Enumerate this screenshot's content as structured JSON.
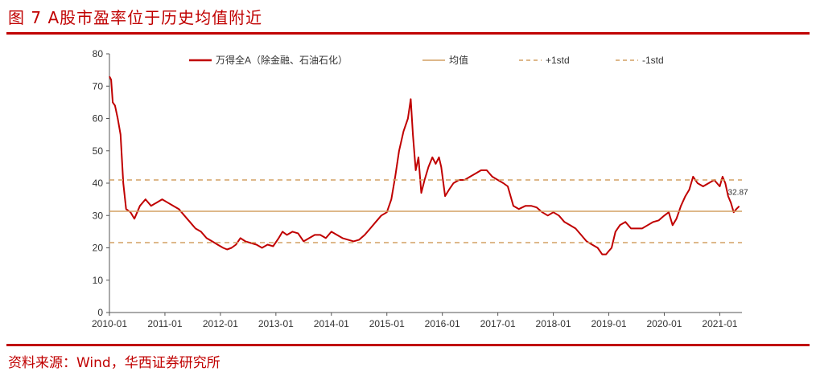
{
  "header": {
    "title": "图 7 A股市盈率位于历史均值附近"
  },
  "footer": {
    "source": "资料来源：Wind，华西证券研究所"
  },
  "colors": {
    "accent": "#c00000",
    "series": "#c00000",
    "mean": "#d4a064",
    "std": "#d4a064"
  },
  "chart_data": {
    "type": "line",
    "title": "",
    "xlabel": "",
    "ylabel": "",
    "xlim": [
      2010.0,
      2021.4
    ],
    "ylim": [
      0,
      80
    ],
    "yticks": [
      0,
      10,
      20,
      30,
      40,
      50,
      60,
      70,
      80
    ],
    "xticks": [
      {
        "x": 2010.0,
        "label": "2010-01"
      },
      {
        "x": 2011.0,
        "label": "2011-01"
      },
      {
        "x": 2012.0,
        "label": "2012-01"
      },
      {
        "x": 2013.0,
        "label": "2013-01"
      },
      {
        "x": 2014.0,
        "label": "2014-01"
      },
      {
        "x": 2015.0,
        "label": "2015-01"
      },
      {
        "x": 2016.0,
        "label": "2016-01"
      },
      {
        "x": 2017.0,
        "label": "2017-01"
      },
      {
        "x": 2018.0,
        "label": "2018-01"
      },
      {
        "x": 2019.0,
        "label": "2019-01"
      },
      {
        "x": 2020.0,
        "label": "2020-01"
      },
      {
        "x": 2021.0,
        "label": "2021-01"
      }
    ],
    "grid": false,
    "legend_position": "top",
    "series": [
      {
        "name": "万得全A（除金融、石油石化）",
        "style": "solid",
        "points": [
          [
            2010.0,
            73
          ],
          [
            2010.03,
            72
          ],
          [
            2010.06,
            65
          ],
          [
            2010.1,
            64
          ],
          [
            2010.15,
            60
          ],
          [
            2010.2,
            55
          ],
          [
            2010.25,
            40
          ],
          [
            2010.3,
            32
          ],
          [
            2010.38,
            31
          ],
          [
            2010.45,
            29
          ],
          [
            2010.55,
            33
          ],
          [
            2010.65,
            35
          ],
          [
            2010.75,
            33
          ],
          [
            2010.85,
            34
          ],
          [
            2010.95,
            35
          ],
          [
            2011.05,
            34
          ],
          [
            2011.15,
            33
          ],
          [
            2011.25,
            32
          ],
          [
            2011.35,
            30
          ],
          [
            2011.45,
            28
          ],
          [
            2011.55,
            26
          ],
          [
            2011.65,
            25
          ],
          [
            2011.75,
            23
          ],
          [
            2011.85,
            22
          ],
          [
            2011.95,
            21
          ],
          [
            2012.05,
            20
          ],
          [
            2012.12,
            19.5
          ],
          [
            2012.2,
            20
          ],
          [
            2012.28,
            21
          ],
          [
            2012.36,
            23
          ],
          [
            2012.45,
            22
          ],
          [
            2012.55,
            21.5
          ],
          [
            2012.65,
            21
          ],
          [
            2012.75,
            20
          ],
          [
            2012.85,
            21
          ],
          [
            2012.95,
            20.5
          ],
          [
            2013.05,
            23
          ],
          [
            2013.12,
            25
          ],
          [
            2013.2,
            24
          ],
          [
            2013.3,
            25
          ],
          [
            2013.4,
            24.5
          ],
          [
            2013.5,
            22
          ],
          [
            2013.6,
            23
          ],
          [
            2013.7,
            24
          ],
          [
            2013.8,
            24
          ],
          [
            2013.9,
            23
          ],
          [
            2014.0,
            25
          ],
          [
            2014.1,
            24
          ],
          [
            2014.2,
            23
          ],
          [
            2014.3,
            22.5
          ],
          [
            2014.4,
            22
          ],
          [
            2014.5,
            22.5
          ],
          [
            2014.6,
            24
          ],
          [
            2014.7,
            26
          ],
          [
            2014.8,
            28
          ],
          [
            2014.9,
            30
          ],
          [
            2015.0,
            31
          ],
          [
            2015.08,
            35
          ],
          [
            2015.15,
            42
          ],
          [
            2015.22,
            50
          ],
          [
            2015.3,
            56
          ],
          [
            2015.38,
            60
          ],
          [
            2015.43,
            66
          ],
          [
            2015.47,
            55
          ],
          [
            2015.52,
            44
          ],
          [
            2015.57,
            48
          ],
          [
            2015.62,
            37
          ],
          [
            2015.68,
            41
          ],
          [
            2015.75,
            45
          ],
          [
            2015.82,
            48
          ],
          [
            2015.88,
            46
          ],
          [
            2015.94,
            48
          ],
          [
            2015.98,
            45
          ],
          [
            2016.05,
            36
          ],
          [
            2016.12,
            38
          ],
          [
            2016.2,
            40
          ],
          [
            2016.3,
            41
          ],
          [
            2016.4,
            41
          ],
          [
            2016.5,
            42
          ],
          [
            2016.6,
            43
          ],
          [
            2016.7,
            44
          ],
          [
            2016.8,
            44
          ],
          [
            2016.9,
            42
          ],
          [
            2017.0,
            41
          ],
          [
            2017.1,
            40
          ],
          [
            2017.18,
            39
          ],
          [
            2017.28,
            33
          ],
          [
            2017.38,
            32
          ],
          [
            2017.5,
            33
          ],
          [
            2017.6,
            33
          ],
          [
            2017.7,
            32.5
          ],
          [
            2017.8,
            31
          ],
          [
            2017.9,
            30
          ],
          [
            2018.0,
            31
          ],
          [
            2018.1,
            30
          ],
          [
            2018.2,
            28
          ],
          [
            2018.3,
            27
          ],
          [
            2018.4,
            26
          ],
          [
            2018.5,
            24
          ],
          [
            2018.6,
            22
          ],
          [
            2018.7,
            21
          ],
          [
            2018.8,
            20
          ],
          [
            2018.88,
            18
          ],
          [
            2018.95,
            18
          ],
          [
            2019.0,
            19
          ],
          [
            2019.05,
            20
          ],
          [
            2019.12,
            25
          ],
          [
            2019.2,
            27
          ],
          [
            2019.3,
            28
          ],
          [
            2019.4,
            26
          ],
          [
            2019.5,
            26
          ],
          [
            2019.6,
            26
          ],
          [
            2019.7,
            27
          ],
          [
            2019.8,
            28
          ],
          [
            2019.9,
            28.5
          ],
          [
            2020.0,
            30
          ],
          [
            2020.08,
            31
          ],
          [
            2020.15,
            27
          ],
          [
            2020.22,
            29
          ],
          [
            2020.3,
            33
          ],
          [
            2020.38,
            36
          ],
          [
            2020.45,
            38
          ],
          [
            2020.52,
            42
          ],
          [
            2020.6,
            40
          ],
          [
            2020.7,
            39
          ],
          [
            2020.8,
            40
          ],
          [
            2020.9,
            41
          ],
          [
            2021.0,
            39
          ],
          [
            2021.05,
            42
          ],
          [
            2021.1,
            40
          ],
          [
            2021.15,
            36
          ],
          [
            2021.2,
            34
          ],
          [
            2021.25,
            31
          ],
          [
            2021.3,
            32
          ],
          [
            2021.35,
            32.87
          ]
        ]
      },
      {
        "name": "均值",
        "style": "solid",
        "constant": 31.3
      },
      {
        "name": "+1std",
        "style": "dashed",
        "constant": 41.0
      },
      {
        "name": "-1std",
        "style": "dashed",
        "constant": 21.6
      }
    ],
    "annotations": [
      {
        "label": "32.87",
        "x": 2021.35,
        "y": 32.87
      }
    ]
  }
}
